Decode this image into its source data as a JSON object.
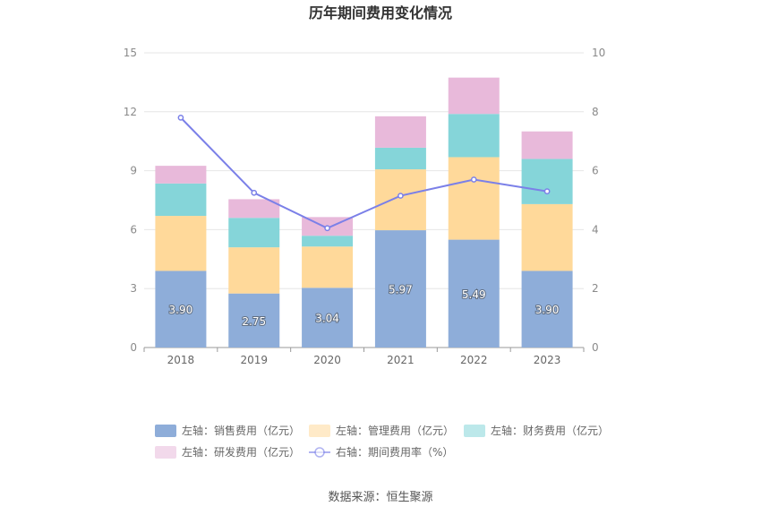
{
  "chart_data": {
    "type": "bar",
    "title": "历年期间费用变化情况",
    "categories": [
      "2018",
      "2019",
      "2020",
      "2021",
      "2022",
      "2023"
    ],
    "stacked": true,
    "left_axis": {
      "ylim": [
        0,
        15
      ],
      "ticks": [
        "0",
        "3",
        "6",
        "9",
        "12",
        "15"
      ]
    },
    "right_axis": {
      "ylim": [
        0,
        10
      ],
      "ticks": [
        "0",
        "2",
        "4",
        "6",
        "8",
        "10"
      ]
    },
    "series": [
      {
        "name": "左轴：销售费用（亿元）",
        "axis": "left",
        "type": "bar",
        "color": "#8eadd9",
        "values": [
          3.9,
          2.75,
          3.04,
          5.97,
          5.49,
          3.9
        ],
        "labels": [
          "3.90",
          "2.75",
          "3.04",
          "5.97",
          "5.49",
          "3.90"
        ]
      },
      {
        "name": "左轴：管理费用（亿元）",
        "axis": "left",
        "type": "bar",
        "color": "#ffd99a",
        "values": [
          2.8,
          2.35,
          2.1,
          3.1,
          4.2,
          3.4
        ]
      },
      {
        "name": "左轴：财务费用（亿元）",
        "axis": "left",
        "type": "bar",
        "color": "#85d5d9",
        "values": [
          1.65,
          1.5,
          0.55,
          1.1,
          2.2,
          2.3
        ]
      },
      {
        "name": "左轴：研发费用（亿元）",
        "axis": "left",
        "type": "bar",
        "color": "#e8b9da",
        "values": [
          0.9,
          0.95,
          0.95,
          1.6,
          1.85,
          1.4
        ]
      },
      {
        "name": "右轴：期间费用率（%）",
        "axis": "right",
        "type": "line",
        "color": "#7b80e8",
        "values": [
          7.8,
          5.25,
          4.05,
          5.15,
          5.7,
          5.3
        ]
      }
    ],
    "grid": true,
    "legend_position": "bottom",
    "source": "数据来源：恒生聚源"
  }
}
